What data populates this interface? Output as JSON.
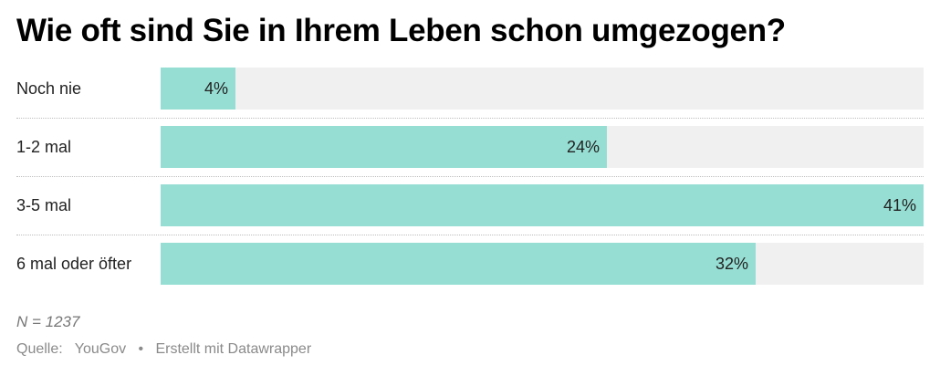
{
  "title": "Wie oft sind Sie in Ihrem Leben schon umgezogen?",
  "note": "N = 1237",
  "footer": {
    "source_label": "Quelle:",
    "source": "YouGov",
    "separator": "•",
    "credit": "Erstellt mit Datawrapper"
  },
  "colors": {
    "bar": "#96ded3",
    "track": "#f0f0f0"
  },
  "chart_data": {
    "type": "bar",
    "orientation": "horizontal",
    "title": "Wie oft sind Sie in Ihrem Leben schon umgezogen?",
    "categories": [
      "Noch nie",
      "1-2 mal",
      "3-5 mal",
      "6 mal oder öfter"
    ],
    "values": [
      4,
      24,
      41,
      32
    ],
    "value_labels": [
      "4%",
      "24%",
      "41%",
      "32%"
    ],
    "unit": "%",
    "xlim": [
      0,
      41
    ],
    "grid": false,
    "legend": "none"
  }
}
